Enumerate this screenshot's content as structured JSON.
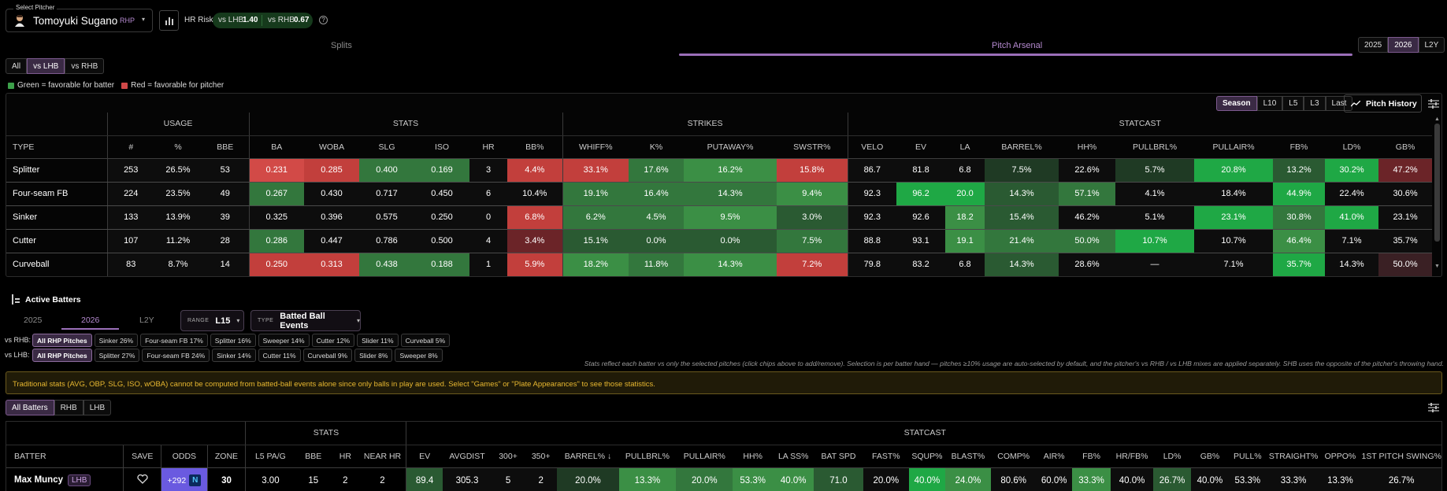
{
  "colors": {
    "accent": "#a87bc8",
    "bg": "#000000",
    "green": "#2e8b3e",
    "red": "#c9403e"
  },
  "pitcher": {
    "legend": "Select Pitcher",
    "name": "Tomoyuki Sugano",
    "hand": "RHP",
    "hr_risk_label": "HR Risk",
    "vs_lhb_label": "vs LHB",
    "vs_lhb_val": "1.40",
    "vs_rhb_label": "vs RHB",
    "vs_rhb_val": "0.67"
  },
  "tabs": {
    "splits": "Splits",
    "arsenal": "Pitch Arsenal"
  },
  "years": [
    "2025",
    "2026",
    "L2Y"
  ],
  "side_filters": [
    "All",
    "vs LHB",
    "vs RHB"
  ],
  "legend": {
    "green": "Green = favorable for batter",
    "red": "Red = favorable for pitcher"
  },
  "ranges": [
    "Season",
    "L10",
    "L5",
    "L3",
    "Last"
  ],
  "pitch_history": "Pitch History",
  "arsenal": {
    "groups": [
      "USAGE",
      "STATS",
      "STRIKES",
      "STATCAST"
    ],
    "columns": [
      "TYPE",
      "#",
      "%",
      "BBE",
      "BA",
      "WOBA",
      "SLG",
      "ISO",
      "HR",
      "BB%",
      "WHIFF%",
      "K%",
      "PUTAWAY%",
      "SWSTR%",
      "VELO",
      "EV",
      "LA",
      "BARREL%",
      "HH%",
      "PULLBRL%",
      "PULLAIR%",
      "FB%",
      "LD%",
      "GB%"
    ],
    "rows": [
      [
        "Splitter",
        "253",
        "26.5%",
        "53",
        "0.231",
        "0.285",
        "0.400",
        "0.169",
        "3",
        "4.4%",
        "33.1%",
        "17.6%",
        "16.2%",
        "15.8%",
        "86.7",
        "81.8",
        "6.8",
        "7.5%",
        "22.6%",
        "5.7%",
        "20.8%",
        "13.2%",
        "30.2%",
        "47.2%"
      ],
      [
        "Four-seam FB",
        "224",
        "23.5%",
        "49",
        "0.267",
        "0.430",
        "0.717",
        "0.450",
        "6",
        "10.4%",
        "19.1%",
        "16.4%",
        "14.3%",
        "9.4%",
        "92.3",
        "96.2",
        "20.0",
        "14.3%",
        "57.1%",
        "4.1%",
        "18.4%",
        "44.9%",
        "22.4%",
        "30.6%"
      ],
      [
        "Sinker",
        "133",
        "13.9%",
        "39",
        "0.325",
        "0.396",
        "0.575",
        "0.250",
        "0",
        "6.8%",
        "6.2%",
        "4.5%",
        "9.5%",
        "3.0%",
        "92.3",
        "92.6",
        "18.2",
        "15.4%",
        "46.2%",
        "5.1%",
        "23.1%",
        "30.8%",
        "41.0%",
        "23.1%"
      ],
      [
        "Cutter",
        "107",
        "11.2%",
        "28",
        "0.286",
        "0.447",
        "0.786",
        "0.500",
        "4",
        "3.4%",
        "15.1%",
        "0.0%",
        "0.0%",
        "7.5%",
        "88.8",
        "93.1",
        "19.1",
        "21.4%",
        "50.0%",
        "10.7%",
        "10.7%",
        "46.4%",
        "7.1%",
        "35.7%"
      ],
      [
        "Curveball",
        "83",
        "8.7%",
        "14",
        "0.250",
        "0.313",
        "0.438",
        "0.188",
        "1",
        "5.9%",
        "18.2%",
        "11.8%",
        "14.3%",
        "7.2%",
        "79.8",
        "83.2",
        "6.8",
        "14.3%",
        "28.6%",
        "—",
        "7.1%",
        "35.7%",
        "14.3%",
        "50.0%"
      ]
    ]
  },
  "batters": {
    "title": "Active Batters",
    "years": [
      "2025",
      "2026",
      "L2Y"
    ],
    "range_label": "RANGE",
    "range_value": "L15",
    "type_label": "TYPE",
    "type_value": "Batted Ball Events",
    "vs_rhb_label": "vs RHB:",
    "vs_lhb_label": "vs LHB:",
    "rhb_chips": [
      "All RHP Pitches",
      "Sinker 26%",
      "Four-seam FB 17%",
      "Splitter 16%",
      "Sweeper 14%",
      "Cutter 12%",
      "Slider 11%",
      "Curveball 5%"
    ],
    "lhb_chips": [
      "All RHP Pitches",
      "Splitter 27%",
      "Four-seam FB 24%",
      "Sinker 14%",
      "Cutter 11%",
      "Curveball 9%",
      "Slider 8%",
      "Sweeper 8%"
    ],
    "note": "Stats reflect each batter vs only the selected pitches (click chips above to add/remove). Selection is per batter hand — pitches ≥10% usage are auto-selected by default, and the pitcher's vs RHB / vs LHB mixes are applied separately. SHB uses the opposite of the pitcher's throwing hand.",
    "warning": "Traditional stats (AVG, OBP, SLG, ISO, wOBA) cannot be computed from batted-ball events alone since only balls in play are used. Select \"Games\" or \"Plate Appearances\" to see those statistics.",
    "filters": [
      "All Batters",
      "RHB",
      "LHB"
    ],
    "groups": [
      "STATS",
      "STATCAST"
    ],
    "columns": [
      "BATTER",
      "SAVE",
      "ODDS",
      "ZONE",
      "L5 PA/G",
      "BBE",
      "HR",
      "NEAR HR",
      "EV",
      "AVGDIST",
      "300+",
      "350+",
      "BARREL% ↓",
      "PULLBRL%",
      "PULLAIR%",
      "HH%",
      "LA SS%",
      "BAT SPD",
      "FAST%",
      "SQUP%",
      "BLAST%",
      "COMP%",
      "AIR%",
      "FB%",
      "HR/FB%",
      "LD%",
      "GB%",
      "PULL%",
      "STRAIGHT%",
      "OPPO%",
      "1ST PITCH SWING%"
    ],
    "rows": [
      {
        "name": "Max Muncy",
        "hand": "LHB",
        "odds": "+292",
        "values": [
          "30",
          "3.00",
          "15",
          "2",
          "2",
          "89.4",
          "305.3",
          "5",
          "2",
          "20.0%",
          "13.3%",
          "20.0%",
          "53.3%",
          "40.0%",
          "71.0",
          "20.0%",
          "40.0%",
          "24.0%",
          "80.6%",
          "60.0%",
          "33.3%",
          "40.0%",
          "26.7%",
          "40.0%",
          "53.3%",
          "33.3%",
          "13.3%",
          "26.7%"
        ]
      }
    ]
  }
}
